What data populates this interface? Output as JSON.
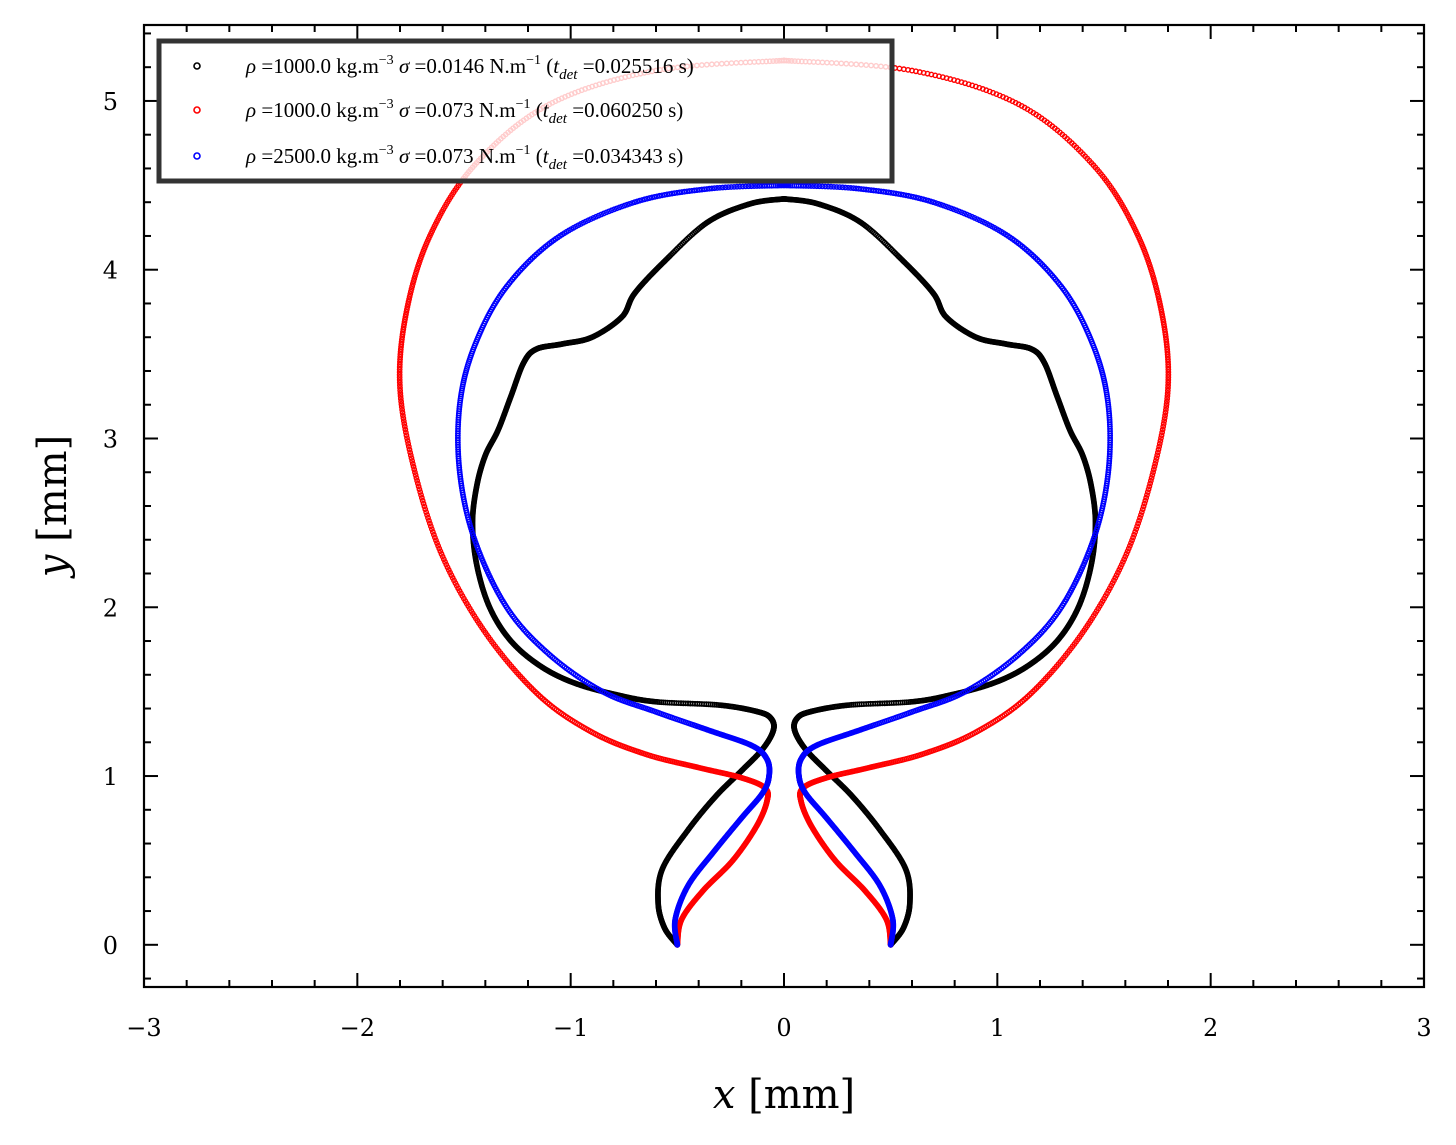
{
  "chart_data": {
    "type": "scatter",
    "title": "",
    "xlabel": "x [mm]",
    "ylabel": "y [mm]",
    "xlim": [
      -3,
      3
    ],
    "ylim": [
      -0.25,
      5.45
    ],
    "x_ticks": [
      "−3",
      "−2",
      "−1",
      "0",
      "1",
      "2",
      "3"
    ],
    "y_ticks": [
      "0",
      "1",
      "2",
      "3",
      "4",
      "5"
    ],
    "x_tick_values": [
      -3,
      -2,
      -1,
      0,
      1,
      2,
      3
    ],
    "y_tick_values": [
      0,
      1,
      2,
      3,
      4,
      5
    ],
    "grid": false,
    "legend_position": "top-left",
    "series": [
      {
        "name": "ρ =1000.0 kg.m⁻³ σ =0.0146 N.m⁻¹ (t_det =0.025516 s)",
        "legend": {
          "rho": "1000.0",
          "sigma": "0.0146",
          "tdet": "0.025516"
        },
        "color": "#000000",
        "points_right_half": [
          [
            0.5,
            0.0
          ],
          [
            0.56,
            0.1
          ],
          [
            0.59,
            0.25
          ],
          [
            0.57,
            0.45
          ],
          [
            0.45,
            0.68
          ],
          [
            0.32,
            0.88
          ],
          [
            0.2,
            1.03
          ],
          [
            0.1,
            1.16
          ],
          [
            0.05,
            1.27
          ],
          [
            0.06,
            1.34
          ],
          [
            0.12,
            1.38
          ],
          [
            0.3,
            1.42
          ],
          [
            0.6,
            1.44
          ],
          [
            0.78,
            1.48
          ],
          [
            0.98,
            1.55
          ],
          [
            1.14,
            1.65
          ],
          [
            1.28,
            1.8
          ],
          [
            1.38,
            2.0
          ],
          [
            1.44,
            2.25
          ],
          [
            1.46,
            2.5
          ],
          [
            1.44,
            2.72
          ],
          [
            1.4,
            2.9
          ],
          [
            1.34,
            3.05
          ],
          [
            1.28,
            3.25
          ],
          [
            1.22,
            3.45
          ],
          [
            1.16,
            3.53
          ],
          [
            1.04,
            3.56
          ],
          [
            0.9,
            3.6
          ],
          [
            0.76,
            3.72
          ],
          [
            0.7,
            3.86
          ],
          [
            0.56,
            4.05
          ],
          [
            0.36,
            4.28
          ],
          [
            0.16,
            4.39
          ],
          [
            0.0,
            4.42
          ]
        ]
      },
      {
        "name": "ρ =1000.0 kg.m⁻³ σ =0.073 N.m⁻¹ (t_det =0.060250 s)",
        "legend": {
          "rho": "1000.0",
          "sigma": "0.073",
          "tdet": "0.060250"
        },
        "color": "#ff0000",
        "points_right_half": [
          [
            0.5,
            0.0
          ],
          [
            0.48,
            0.15
          ],
          [
            0.38,
            0.32
          ],
          [
            0.24,
            0.5
          ],
          [
            0.13,
            0.7
          ],
          [
            0.08,
            0.85
          ],
          [
            0.09,
            0.93
          ],
          [
            0.2,
            0.99
          ],
          [
            0.4,
            1.05
          ],
          [
            0.65,
            1.13
          ],
          [
            0.9,
            1.26
          ],
          [
            1.15,
            1.48
          ],
          [
            1.4,
            1.85
          ],
          [
            1.6,
            2.3
          ],
          [
            1.73,
            2.8
          ],
          [
            1.8,
            3.3
          ],
          [
            1.77,
            3.75
          ],
          [
            1.66,
            4.2
          ],
          [
            1.45,
            4.62
          ],
          [
            1.1,
            4.98
          ],
          [
            0.6,
            5.18
          ],
          [
            0.0,
            5.24
          ]
        ]
      },
      {
        "name": "ρ =2500.0 kg.m⁻³ σ =0.073 N.m⁻¹ (t_det =0.034343 s)",
        "legend": {
          "rho": "2500.0",
          "sigma": "0.073",
          "tdet": "0.034343"
        },
        "color": "#0000ff",
        "points_right_half": [
          [
            0.5,
            0.0
          ],
          [
            0.51,
            0.15
          ],
          [
            0.45,
            0.35
          ],
          [
            0.33,
            0.55
          ],
          [
            0.2,
            0.75
          ],
          [
            0.1,
            0.9
          ],
          [
            0.07,
            1.0
          ],
          [
            0.08,
            1.1
          ],
          [
            0.15,
            1.18
          ],
          [
            0.35,
            1.27
          ],
          [
            0.6,
            1.38
          ],
          [
            0.85,
            1.5
          ],
          [
            1.1,
            1.72
          ],
          [
            1.3,
            2.0
          ],
          [
            1.45,
            2.4
          ],
          [
            1.52,
            2.8
          ],
          [
            1.52,
            3.2
          ],
          [
            1.45,
            3.55
          ],
          [
            1.3,
            3.9
          ],
          [
            1.05,
            4.2
          ],
          [
            0.7,
            4.4
          ],
          [
            0.35,
            4.48
          ],
          [
            0.0,
            4.5
          ]
        ]
      }
    ]
  }
}
